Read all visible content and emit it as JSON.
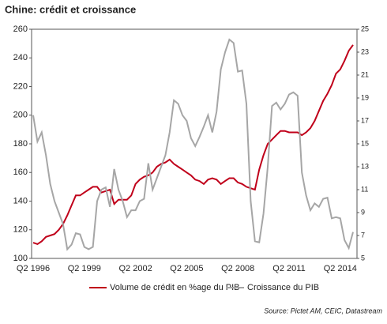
{
  "chart_data": {
    "type": "line",
    "title": "Chine: crédit et croissance",
    "source": "Source: Pictet AM, CEIC, Datastream",
    "categories": [
      "Q2 1996",
      null,
      null,
      null,
      null,
      null,
      null,
      null,
      null,
      null,
      null,
      null,
      "Q2 1999",
      null,
      null,
      null,
      null,
      null,
      null,
      null,
      null,
      null,
      null,
      null,
      "Q2 2002",
      null,
      null,
      null,
      null,
      null,
      null,
      null,
      null,
      null,
      null,
      null,
      "Q2 2005",
      null,
      null,
      null,
      null,
      null,
      null,
      null,
      null,
      null,
      null,
      null,
      "Q2 2008",
      null,
      null,
      null,
      null,
      null,
      null,
      null,
      null,
      null,
      null,
      null,
      "Q2 2011",
      null,
      null,
      null,
      null,
      null,
      null,
      null,
      null,
      null,
      null,
      null,
      "Q2 2014",
      null,
      null,
      null
    ],
    "series": [
      {
        "name": "Volume de crédit en %age du PIB",
        "color": "#c0001a",
        "axis": "y",
        "values": [
          111,
          110,
          112,
          115,
          116,
          117,
          120,
          124,
          130,
          137,
          144,
          144,
          146,
          148,
          150,
          150,
          146,
          147,
          148,
          138,
          141,
          141,
          141,
          144,
          152,
          155,
          157,
          158,
          160,
          164,
          166,
          167,
          169,
          166,
          164,
          162,
          160,
          158,
          155,
          154,
          152,
          155,
          156,
          155,
          152,
          154,
          156,
          156,
          153,
          152,
          150,
          149,
          148,
          162,
          172,
          180,
          183,
          186,
          189,
          189,
          188,
          188,
          188,
          186,
          188,
          191,
          196,
          203,
          210,
          215,
          221,
          229,
          232,
          238,
          245,
          249
        ]
      },
      {
        "name": "Croissance du PIB",
        "color": "#a6a6a6",
        "axis": "y2",
        "values": [
          17.5,
          15.2,
          16,
          14,
          11.5,
          10,
          9,
          8,
          5.8,
          6.2,
          7.2,
          7.1,
          6,
          5.8,
          6,
          10,
          11,
          11.2,
          9.5,
          12.8,
          11,
          10,
          8.6,
          9.2,
          9.2,
          10,
          10.2,
          13.3,
          11,
          12,
          13,
          14,
          16,
          18.8,
          18.5,
          17.5,
          17,
          15.5,
          14.8,
          15.6,
          16.5,
          17.5,
          16,
          17.8,
          21.5,
          23,
          24.1,
          23.8,
          21.3,
          21.4,
          18.5,
          10,
          6.5,
          6.4,
          8.9,
          13,
          18.3,
          18.6,
          18,
          18.5,
          19.3,
          19.5,
          19.2,
          12.5,
          10.5,
          9.2,
          9.8,
          9.5,
          10.2,
          10.3,
          8.5,
          8.6,
          8.5,
          6.6,
          5.9,
          7.3
        ]
      }
    ],
    "ylim": [
      100,
      260
    ],
    "yticks": [
      100,
      120,
      140,
      160,
      180,
      200,
      220,
      240,
      260
    ],
    "y2lim": [
      5,
      25
    ],
    "y2ticks": [
      5,
      7,
      9,
      11,
      13,
      15,
      17,
      19,
      21,
      23,
      25
    ]
  }
}
